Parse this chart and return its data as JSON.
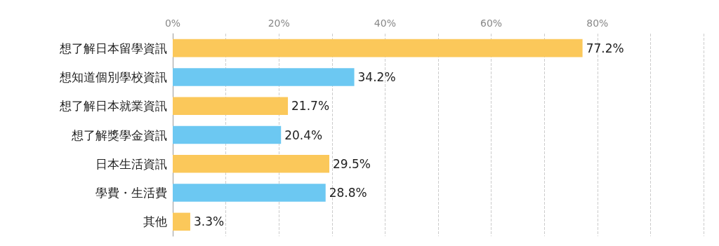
{
  "chart_data": {
    "type": "bar",
    "orientation": "horizontal",
    "categories": [
      "想了解日本留學資訊",
      "想知道個別學校資訊",
      "想了解日本就業資訊",
      "想了解獎學金資訊",
      "日本生活資訊",
      "學費・生活費",
      "其他"
    ],
    "values": [
      77.2,
      34.2,
      21.7,
      20.4,
      29.5,
      28.8,
      3.3
    ],
    "colors": [
      "#fbc85a",
      "#6cc8f2",
      "#fbc85a",
      "#6cc8f2",
      "#fbc85a",
      "#6cc8f2",
      "#fbc85a"
    ],
    "value_labels": [
      "77.2%",
      "34.2%",
      "21.7%",
      "20.4%",
      "29.5%",
      "28.8%",
      "3.3%"
    ],
    "xlim": [
      0,
      100
    ],
    "xticks": [
      {
        "value": 0,
        "label": "0%"
      },
      {
        "value": 10,
        "label": null
      },
      {
        "value": 20,
        "label": "20%"
      },
      {
        "value": 30,
        "label": null
      },
      {
        "value": 40,
        "label": "40%"
      },
      {
        "value": 50,
        "label": null
      },
      {
        "value": 60,
        "label": "60%"
      },
      {
        "value": 70,
        "label": null
      },
      {
        "value": 80,
        "label": "80%"
      },
      {
        "value": 90,
        "label": null
      },
      {
        "value": 100,
        "label": null
      }
    ],
    "grid": "x"
  }
}
